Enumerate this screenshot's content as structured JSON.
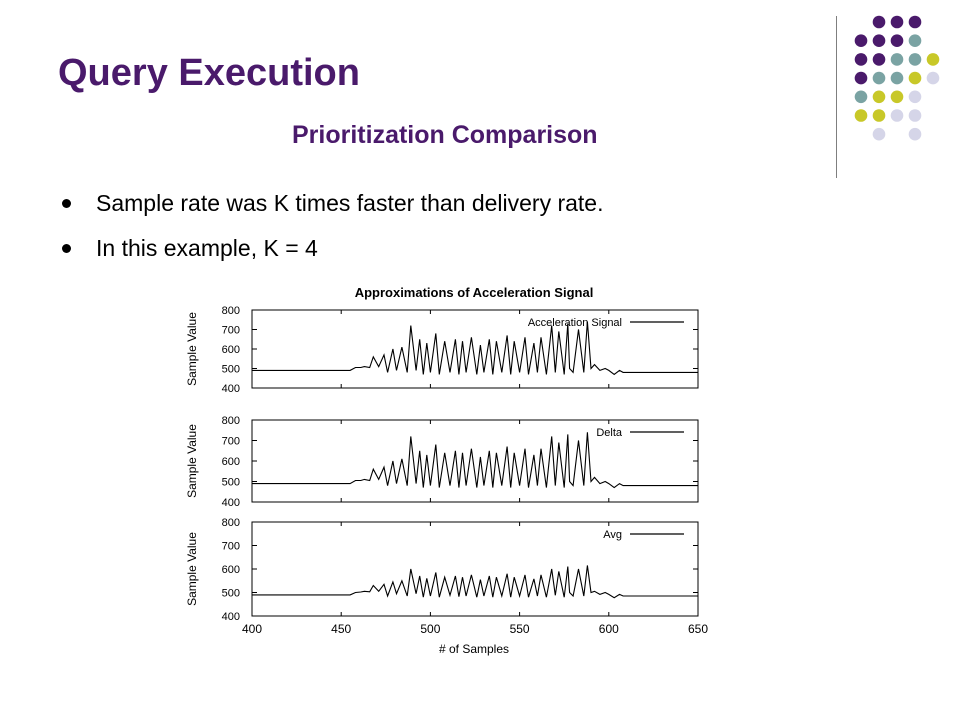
{
  "slide": {
    "title": "Query Execution",
    "subtitle": "Prioritization Comparison",
    "bullets": [
      "Sample rate was K times faster than delivery rate.",
      "In this example,  K = 4"
    ]
  },
  "colors": {
    "title": "#4a1a6b",
    "dot_purple": "#4a1a6b",
    "dot_teal": "#7aa3a3",
    "dot_olive": "#c8c828",
    "dot_lavender": "#d5d5e8"
  },
  "chart_data": {
    "type": "line",
    "title": "Approximations of Acceleration Signal",
    "xlabel": "# of Samples",
    "ylabel": "Sample Value",
    "xlim": [
      400,
      650
    ],
    "xticks": [
      400,
      450,
      500,
      550,
      600,
      650
    ],
    "ylim": [
      400,
      800
    ],
    "yticks": [
      400,
      500,
      600,
      700,
      800
    ],
    "panels": [
      {
        "legend": "Acceleration Signal",
        "x": [
          400,
          455,
          458,
          461,
          463,
          466,
          468,
          471,
          474,
          476,
          479,
          481,
          484,
          487,
          489,
          492,
          494,
          496,
          498,
          500,
          503,
          505,
          508,
          511,
          514,
          516,
          518,
          520,
          523,
          526,
          528,
          530,
          533,
          535,
          537,
          540,
          543,
          545,
          547,
          550,
          553,
          555,
          558,
          560,
          562,
          565,
          568,
          570,
          572,
          575,
          577,
          578,
          580,
          583,
          586,
          588,
          590,
          592,
          595,
          598,
          600,
          603,
          606,
          608,
          610,
          650
        ],
        "y": [
          490,
          490,
          505,
          505,
          510,
          505,
          560,
          510,
          570,
          480,
          600,
          490,
          610,
          480,
          720,
          490,
          650,
          470,
          630,
          480,
          680,
          470,
          640,
          480,
          650,
          470,
          640,
          480,
          660,
          470,
          620,
          480,
          650,
          470,
          640,
          480,
          670,
          470,
          640,
          480,
          660,
          470,
          630,
          480,
          660,
          470,
          720,
          480,
          690,
          470,
          730,
          500,
          480,
          700,
          480,
          740,
          500,
          520,
          490,
          500,
          490,
          470,
          490,
          480,
          480,
          480
        ]
      },
      {
        "legend": "Delta",
        "x": [
          400,
          455,
          458,
          461,
          463,
          466,
          468,
          471,
          474,
          476,
          479,
          481,
          484,
          487,
          489,
          492,
          494,
          496,
          498,
          500,
          503,
          505,
          508,
          511,
          514,
          516,
          518,
          520,
          523,
          526,
          528,
          530,
          533,
          535,
          537,
          540,
          543,
          545,
          547,
          550,
          553,
          555,
          558,
          560,
          562,
          565,
          568,
          570,
          572,
          575,
          577,
          578,
          580,
          583,
          586,
          588,
          590,
          592,
          595,
          598,
          600,
          603,
          606,
          608,
          610,
          650
        ],
        "y": [
          490,
          490,
          505,
          505,
          510,
          505,
          560,
          510,
          570,
          480,
          600,
          490,
          610,
          480,
          720,
          490,
          650,
          470,
          630,
          480,
          680,
          470,
          640,
          480,
          650,
          470,
          640,
          480,
          660,
          470,
          620,
          480,
          650,
          470,
          640,
          480,
          670,
          470,
          640,
          480,
          660,
          470,
          630,
          480,
          660,
          470,
          720,
          480,
          690,
          470,
          730,
          500,
          480,
          700,
          480,
          740,
          500,
          520,
          490,
          500,
          490,
          470,
          490,
          480,
          480,
          480
        ]
      },
      {
        "legend": "Avg",
        "x": [
          400,
          455,
          458,
          461,
          463,
          466,
          468,
          471,
          474,
          476,
          479,
          481,
          484,
          487,
          489,
          492,
          494,
          496,
          498,
          500,
          503,
          505,
          508,
          511,
          514,
          516,
          518,
          520,
          523,
          526,
          528,
          530,
          533,
          535,
          537,
          540,
          543,
          545,
          547,
          550,
          553,
          555,
          558,
          560,
          562,
          565,
          568,
          570,
          572,
          575,
          577,
          578,
          580,
          583,
          586,
          588,
          590,
          592,
          595,
          598,
          600,
          603,
          606,
          608,
          610,
          650
        ],
        "y": [
          490,
          490,
          500,
          502,
          505,
          503,
          530,
          505,
          535,
          485,
          545,
          495,
          550,
          485,
          600,
          495,
          570,
          480,
          560,
          485,
          585,
          480,
          565,
          488,
          570,
          482,
          565,
          485,
          575,
          480,
          555,
          485,
          570,
          480,
          565,
          485,
          580,
          480,
          565,
          485,
          575,
          480,
          558,
          485,
          575,
          480,
          600,
          488,
          590,
          480,
          610,
          500,
          485,
          600,
          485,
          615,
          500,
          505,
          492,
          500,
          492,
          478,
          492,
          485,
          485,
          485
        ]
      }
    ],
    "grid": false,
    "legend_position": "top-right"
  }
}
